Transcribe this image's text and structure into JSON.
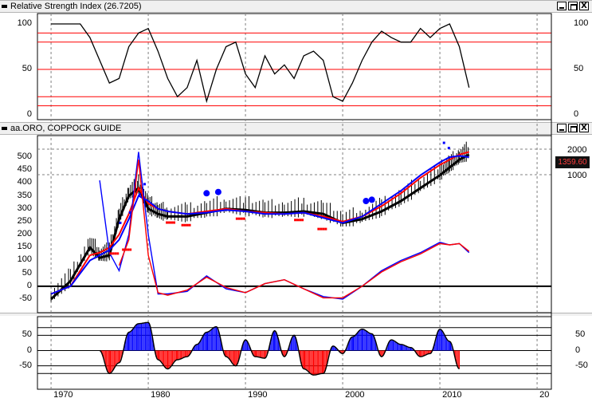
{
  "panes": {
    "rsi": {
      "title": "Relative Strength Index (26.7205)",
      "left_ticks": [
        "100",
        "50",
        "0"
      ],
      "right_ticks": [
        "100",
        "50",
        "0"
      ]
    },
    "price": {
      "title": "aa.ORO, COPPOCK GUIDE",
      "left_ticks": [
        "500",
        "450",
        "400",
        "350",
        "300",
        "250",
        "200",
        "150",
        "100",
        "50",
        "0",
        "-50"
      ],
      "right_ticks": [
        "2000",
        "1000"
      ],
      "last_price": "1359.60"
    },
    "coppock": {
      "left_ticks": [
        "50",
        "0",
        "-50"
      ],
      "right_ticks": [
        "50",
        "0",
        "-50"
      ]
    }
  },
  "window_buttons": {
    "min": "",
    "max": "",
    "close": "X"
  },
  "xaxis": {
    "labels": [
      "1970",
      "1980",
      "1990",
      "2000",
      "2010",
      "20"
    ]
  },
  "colors": {
    "blue": "#0000ff",
    "red": "#ff0000",
    "black": "#000000",
    "grid": "#808080"
  },
  "chart_data": [
    {
      "type": "line",
      "title": "Relative Strength Index (26.7205)",
      "ylim": [
        0,
        100
      ],
      "reference_lines": [
        10,
        20,
        50,
        80,
        90
      ],
      "x": [
        1970,
        1971,
        1972,
        1973,
        1974,
        1975,
        1976,
        1977,
        1978,
        1979,
        1980,
        1981,
        1982,
        1983,
        1984,
        1985,
        1986,
        1987,
        1988,
        1989,
        1990,
        1991,
        1992,
        1993,
        1994,
        1995,
        1996,
        1997,
        1998,
        1999,
        2000,
        2001,
        2002,
        2003,
        2004,
        2005,
        2006,
        2007,
        2008,
        2009,
        2010,
        2011,
        2012,
        2013
      ],
      "y": [
        100,
        100,
        100,
        100,
        85,
        60,
        35,
        40,
        75,
        90,
        95,
        70,
        40,
        20,
        30,
        60,
        15,
        50,
        75,
        80,
        45,
        30,
        65,
        45,
        55,
        40,
        65,
        70,
        60,
        20,
        15,
        35,
        60,
        80,
        92,
        85,
        80,
        80,
        95,
        85,
        95,
        100,
        75,
        30
      ]
    },
    {
      "type": "line",
      "title": "aa.ORO, COPPOCK GUIDE",
      "ylim": [
        -50,
        550
      ],
      "x": [
        1970,
        1972,
        1974,
        1975,
        1976,
        1977,
        1978,
        1979,
        1980,
        1981,
        1982,
        1984,
        1986,
        1988,
        1990,
        1992,
        1994,
        1996,
        1998,
        2000,
        2002,
        2004,
        2006,
        2008,
        2010,
        2011,
        2012,
        2013
      ],
      "series": [
        {
          "color": "#000000",
          "values": [
            -50,
            20,
            150,
            110,
            120,
            260,
            350,
            380,
            300,
            280,
            270,
            270,
            285,
            300,
            295,
            285,
            285,
            290,
            280,
            245,
            260,
            290,
            330,
            380,
            430,
            460,
            490,
            510
          ]
        },
        {
          "color": "#ff0000",
          "values": [
            -30,
            0,
            120,
            130,
            150,
            200,
            280,
            380,
            320,
            300,
            290,
            280,
            290,
            300,
            290,
            285,
            280,
            285,
            270,
            250,
            270,
            310,
            360,
            420,
            470,
            490,
            510,
            520
          ]
        },
        {
          "color": "#0000ff",
          "values": [
            -30,
            0,
            100,
            120,
            140,
            180,
            260,
            350,
            330,
            300,
            290,
            280,
            285,
            295,
            290,
            280,
            280,
            285,
            265,
            245,
            270,
            320,
            370,
            430,
            480,
            500,
            505,
            500
          ]
        },
        {
          "color": "#0000ff",
          "values": [
            null,
            null,
            null,
            410,
            130,
            60,
            200,
            520,
            200,
            -30,
            -30,
            -20,
            40,
            -10,
            -25,
            10,
            25,
            -10,
            -40,
            -50,
            0,
            60,
            100,
            130,
            170,
            160,
            165,
            130
          ]
        },
        {
          "color": "#ff0000",
          "values": [
            null,
            null,
            null,
            null,
            null,
            80,
            180,
            490,
            120,
            -25,
            -35,
            -15,
            35,
            -5,
            -25,
            10,
            25,
            -10,
            -45,
            -45,
            0,
            55,
            95,
            125,
            165,
            160,
            165,
            135
          ]
        }
      ]
    },
    {
      "type": "area",
      "title": "",
      "ylim": [
        -90,
        90
      ],
      "x": [
        1975,
        1976,
        1977,
        1978,
        1979,
        1980,
        1981,
        1982,
        1983,
        1984,
        1985,
        1986,
        1987,
        1988,
        1989,
        1990,
        1991,
        1992,
        1993,
        1994,
        1995,
        1996,
        1997,
        1998,
        1999,
        2000,
        2001,
        2002,
        2003,
        2004,
        2005,
        2006,
        2007,
        2008,
        2009,
        2010,
        2011,
        2012
      ],
      "values": [
        0,
        -75,
        -40,
        60,
        88,
        92,
        -30,
        -60,
        -30,
        -20,
        20,
        60,
        78,
        -20,
        -50,
        35,
        -20,
        -25,
        65,
        -20,
        50,
        -60,
        -80,
        -75,
        15,
        -10,
        45,
        70,
        55,
        -20,
        35,
        20,
        10,
        -20,
        -10,
        70,
        30,
        -60
      ]
    }
  ]
}
